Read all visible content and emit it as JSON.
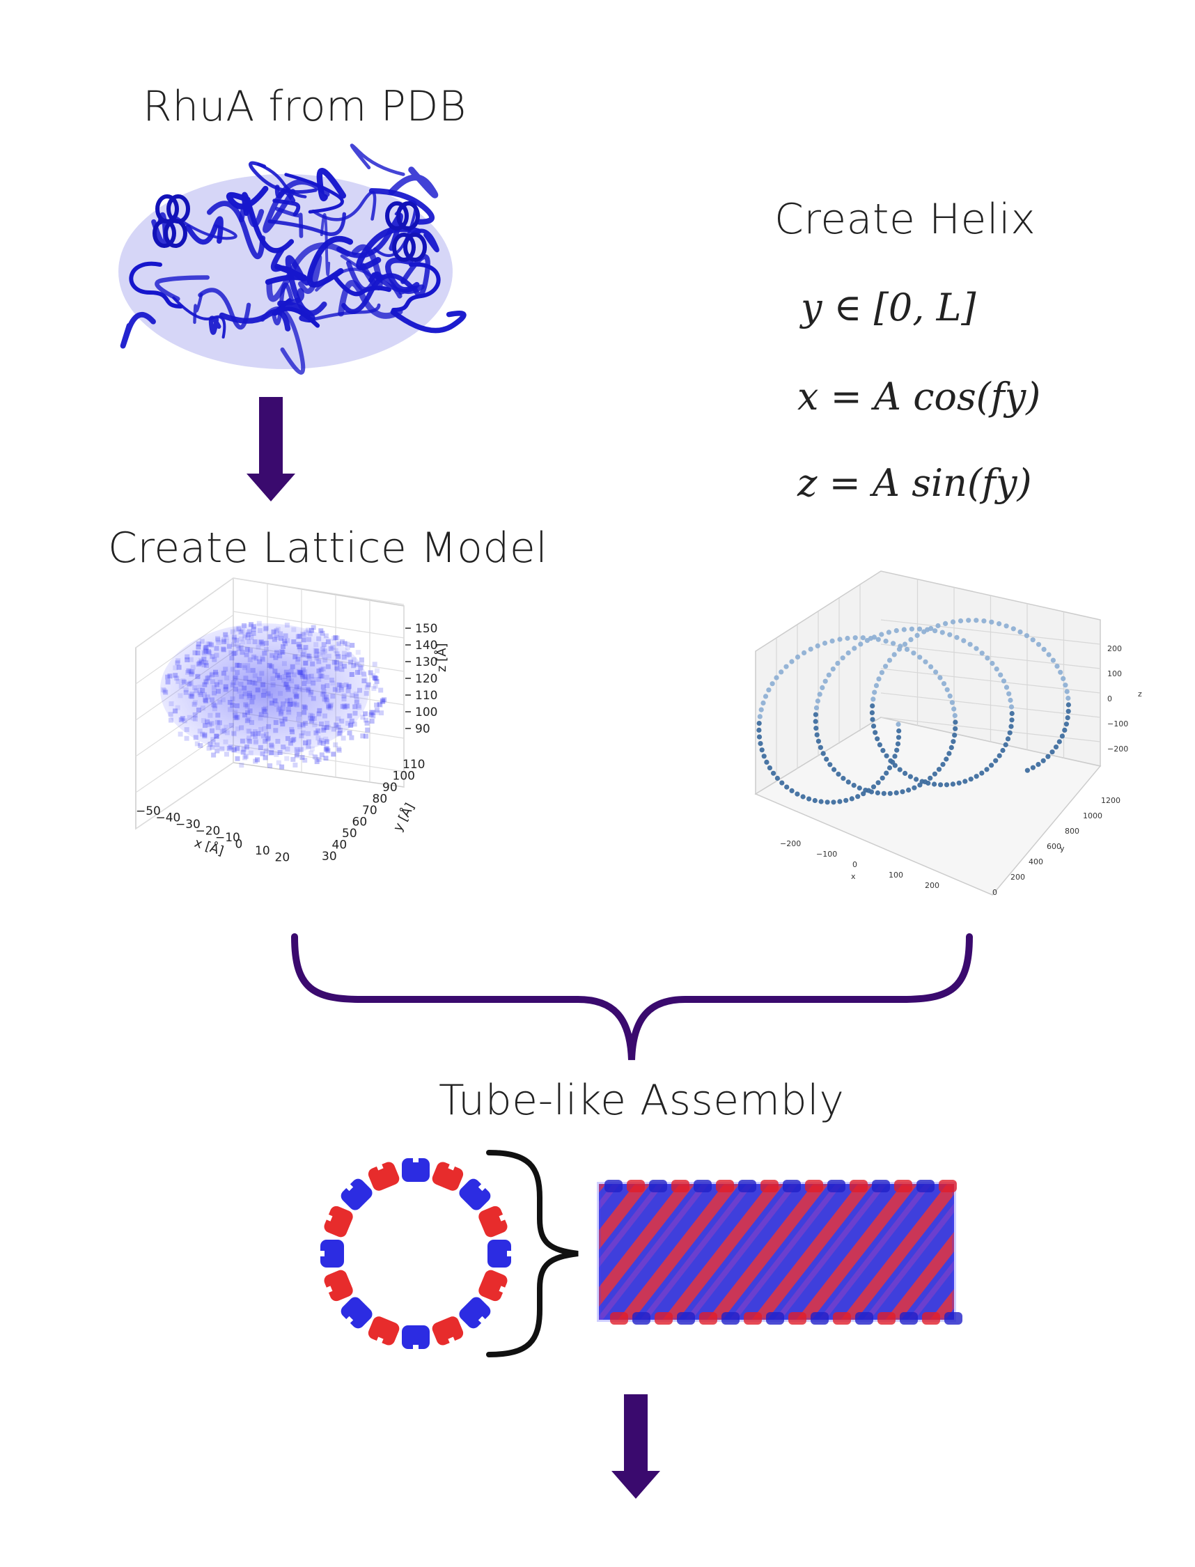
{
  "labels": {
    "rhua": "RhuA from PDB",
    "lattice": "Create Lattice Model",
    "helix": "Create Helix",
    "tube": "Tube-like Assembly"
  },
  "equations": {
    "domain": "y ∈ [0, L]",
    "x_eq": "x = A cos(fy)",
    "z_eq": "z = A sin(fy)"
  },
  "lattice_plot": {
    "x_label": "x [Å]",
    "y_label": "y [Å]",
    "z_label": "z [Å]",
    "x_ticks": [
      "−50",
      "−40",
      "−30",
      "−20",
      "−10",
      "0",
      "10",
      "20"
    ],
    "y_ticks": [
      "30",
      "40",
      "50",
      "60",
      "70",
      "80",
      "90",
      "100",
      "110"
    ],
    "z_ticks": [
      "150",
      "140",
      "130",
      "120",
      "110",
      "100",
      "90"
    ]
  },
  "helix_plot": {
    "x_label": "x",
    "y_label": "y",
    "z_label": "z",
    "x_ticks": [
      "−200",
      "−100",
      "0",
      "100",
      "200"
    ],
    "y_ticks": [
      "0",
      "200",
      "400",
      "600",
      "800",
      "1000",
      "1200"
    ],
    "z_ticks": [
      "200",
      "100",
      "0",
      "−100",
      "−200"
    ]
  },
  "colors": {
    "arrow": "#3a0a6e",
    "protein": "#1414d0",
    "red_unit": "#e51a1a",
    "blue_unit": "#1a1ae0",
    "helix_dots": "#5b86b5"
  }
}
